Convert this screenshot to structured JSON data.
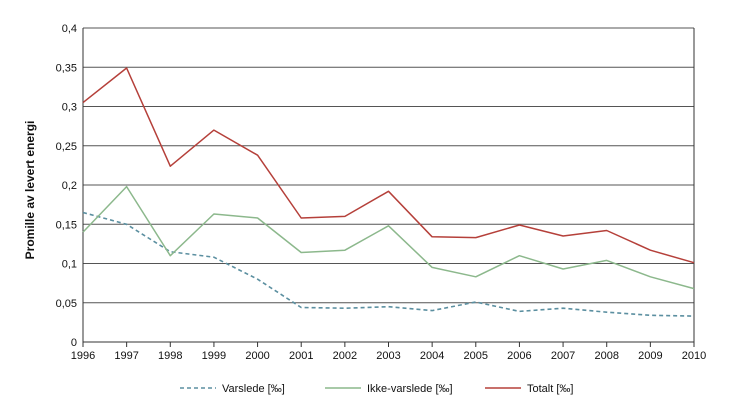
{
  "chart_data": {
    "type": "line",
    "title": "",
    "xlabel": "",
    "ylabel": "Promille av levert energi",
    "x": [
      "1996",
      "1997",
      "1998",
      "1999",
      "2000",
      "2001",
      "2002",
      "2003",
      "2004",
      "2005",
      "2006",
      "2007",
      "2008",
      "2009",
      "2010"
    ],
    "ylim": [
      0,
      0.4
    ],
    "y_ticks": [
      0,
      0.05,
      0.1,
      0.15,
      0.2,
      0.25,
      0.3,
      0.35,
      0.4
    ],
    "y_tick_labels": [
      "0",
      "0,05",
      "0,1",
      "0,15",
      "0,2",
      "0,25",
      "0,3",
      "0,35",
      "0,4"
    ],
    "grid": true,
    "legend_position": "bottom",
    "series": [
      {
        "name": "Varslede [‰]",
        "style": "dashed",
        "color": "#5b8fa0",
        "values": [
          0.165,
          0.15,
          0.115,
          0.108,
          0.08,
          0.044,
          0.043,
          0.045,
          0.04,
          0.051,
          0.039,
          0.043,
          0.038,
          0.034,
          0.033
        ]
      },
      {
        "name": "Ikke-varslede [‰]",
        "style": "solid",
        "color": "#8cb88c",
        "values": [
          0.14,
          0.198,
          0.11,
          0.163,
          0.158,
          0.114,
          0.117,
          0.148,
          0.095,
          0.083,
          0.11,
          0.093,
          0.104,
          0.083,
          0.068
        ]
      },
      {
        "name": "Totalt [‰]",
        "style": "solid",
        "color": "#b5403a",
        "values": [
          0.305,
          0.349,
          0.224,
          0.27,
          0.238,
          0.158,
          0.16,
          0.192,
          0.134,
          0.133,
          0.149,
          0.135,
          0.142,
          0.117,
          0.101
        ]
      }
    ]
  }
}
